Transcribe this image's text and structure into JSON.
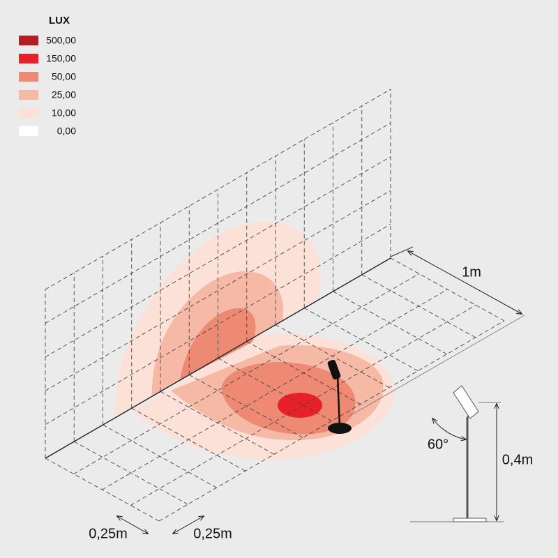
{
  "legend": {
    "title": "LUX",
    "items": [
      {
        "label": "500,00",
        "color": "#b31e22"
      },
      {
        "label": "150,00",
        "color": "#e8202a"
      },
      {
        "label": "50,00",
        "color": "#ee8a74"
      },
      {
        "label": "25,00",
        "color": "#f5b9a5"
      },
      {
        "label": "10,00",
        "color": "#fbe1d7"
      },
      {
        "label": "0,00",
        "color": "#ffffff"
      }
    ]
  },
  "dimensions": {
    "depth": "1m",
    "height": "0,4m",
    "angle": "60°",
    "cell_a": "0,25m",
    "cell_b": "0,25m"
  }
}
